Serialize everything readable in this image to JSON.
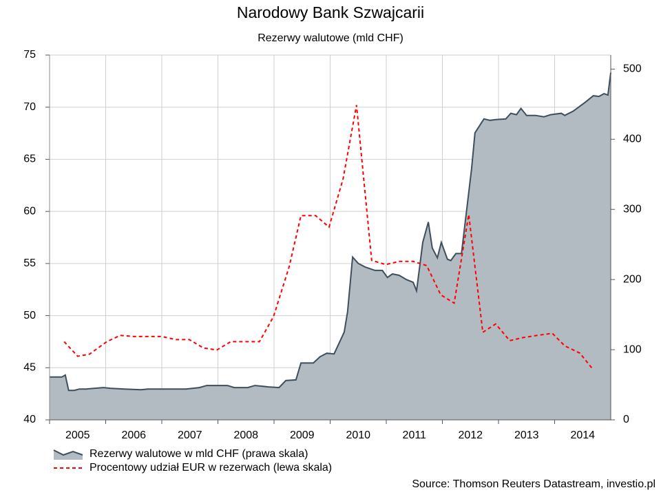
{
  "chart_data": {
    "type": "line",
    "title": "Narodowy Bank Szwajcarii",
    "subtitle": "Rezerwy walutowe (mld CHF)",
    "source": "Source: Thomson Reuters Datastream, investio.pl",
    "xlim": [
      2005,
      2015
    ],
    "xticks": [
      {
        "value": 2005,
        "label": "2005"
      },
      {
        "value": 2006,
        "label": "2006"
      },
      {
        "value": 2007,
        "label": "2007"
      },
      {
        "value": 2008,
        "label": "2008"
      },
      {
        "value": 2009,
        "label": "2009"
      },
      {
        "value": 2010,
        "label": "2010"
      },
      {
        "value": 2011,
        "label": "2011"
      },
      {
        "value": 2012,
        "label": "2012"
      },
      {
        "value": 2013,
        "label": "2013"
      },
      {
        "value": 2014,
        "label": "2014"
      }
    ],
    "ylim": [
      40,
      75
    ],
    "yticks": [
      40,
      45,
      50,
      55,
      60,
      65,
      70,
      75
    ],
    "y2lim": [
      0,
      520
    ],
    "y2ticks": [
      0,
      100,
      200,
      300,
      400,
      500
    ],
    "grid": true,
    "legend": "bottom-left",
    "series": [
      {
        "name": "Rezerwy walutowe w mld CHF (prawa skala)",
        "color": "#3d4e5c",
        "fill": "#b2bac2",
        "style": "area",
        "axis": "y2",
        "x": [
          2005.0,
          2005.22,
          2005.28,
          2005.34,
          2005.44,
          2005.53,
          2005.65,
          2005.96,
          2006.08,
          2006.33,
          2006.63,
          2006.75,
          2007.06,
          2007.43,
          2007.67,
          2007.8,
          2008.17,
          2008.29,
          2008.53,
          2008.66,
          2008.9,
          2009.09,
          2009.21,
          2009.39,
          2009.48,
          2009.7,
          2009.82,
          2009.94,
          2010.07,
          2010.25,
          2010.31,
          2010.4,
          2010.5,
          2010.62,
          2010.8,
          2010.93,
          2011.02,
          2011.11,
          2011.23,
          2011.36,
          2011.48,
          2011.54,
          2011.65,
          2011.75,
          2011.82,
          2011.91,
          2011.98,
          2012.09,
          2012.15,
          2012.24,
          2012.34,
          2012.52,
          2012.58,
          2012.74,
          2012.85,
          2012.95,
          2013.13,
          2013.22,
          2013.32,
          2013.4,
          2013.5,
          2013.66,
          2013.81,
          2013.93,
          2014.12,
          2014.18,
          2014.33,
          2014.55,
          2014.69,
          2014.79,
          2014.88,
          2014.95,
          2015.0
        ],
        "values": [
          61,
          61,
          64,
          42,
          42,
          44,
          44,
          46,
          45,
          44,
          43,
          44,
          44,
          44,
          46,
          49,
          49,
          46,
          46,
          49,
          47,
          46,
          56,
          57,
          81,
          81,
          90,
          95,
          94,
          125,
          154,
          232,
          223,
          218,
          213,
          213,
          203,
          208,
          206,
          200,
          196,
          184,
          253,
          282,
          245,
          231,
          253,
          229,
          227,
          237,
          237,
          358,
          409,
          429,
          427,
          428,
          429,
          437,
          435,
          444,
          434,
          434,
          432,
          435,
          437,
          434,
          440,
          453,
          462,
          461,
          465,
          463,
          495
        ]
      },
      {
        "name": "Procentowy udział EUR w rezerwach (lewa skala)",
        "color": "#ff0000",
        "style": "dashed",
        "x": [
          2005.26,
          2005.5,
          2005.71,
          2006.02,
          2006.26,
          2006.51,
          2007.0,
          2007.25,
          2007.49,
          2007.74,
          2007.98,
          2008.23,
          2008.74,
          2008.99,
          2009.27,
          2009.48,
          2009.74,
          2009.98,
          2010.23,
          2010.47,
          2010.74,
          2010.99,
          2011.23,
          2011.48,
          2011.72,
          2011.97,
          2012.21,
          2012.47,
          2012.72,
          2012.95,
          2013.2,
          2013.44,
          2013.69,
          2013.96,
          2014.18,
          2014.45,
          2014.69
        ],
        "values": [
          47.5,
          46.1,
          46.3,
          47.5,
          48.1,
          48.0,
          48.0,
          47.7,
          47.7,
          46.9,
          46.7,
          47.5,
          47.5,
          49.9,
          54.7,
          59.6,
          59.6,
          58.5,
          63.1,
          70.2,
          55.3,
          54.9,
          55.2,
          55.2,
          54.8,
          52.0,
          51.2,
          59.7,
          48.4,
          49.2,
          47.6,
          47.9,
          48.1,
          48.3,
          47.1,
          46.4,
          44.8
        ]
      }
    ]
  }
}
